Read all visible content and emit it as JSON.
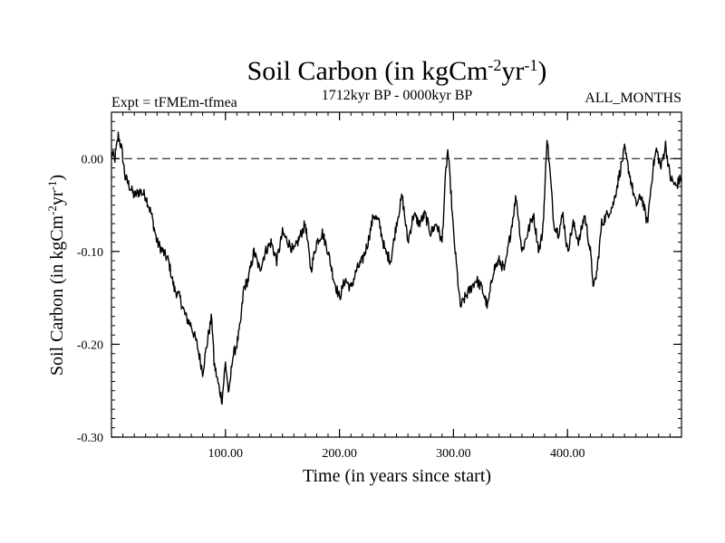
{
  "chart_data": {
    "type": "line",
    "title": {
      "main": "Soil Carbon (in kgCm",
      "sup1": "-2",
      "mid": "yr",
      "sup2": "-1",
      "end": ")"
    },
    "subtitle_left": "Expt = tFMEm-tfmea",
    "subtitle_center": "1712kyr BP - 0000kyr BP",
    "subtitle_right": "ALL_MONTHS",
    "xlabel": "Time (in years since start)",
    "ylabel": {
      "main": "Soil Carbon (in kgCm",
      "sup1": "-2",
      "mid": "yr",
      "sup2": "-1",
      "end": ")"
    },
    "xlim": [
      0,
      500
    ],
    "ylim": [
      -0.3,
      0.05
    ],
    "xticks": [
      {
        "value": 100,
        "label": "100.00"
      },
      {
        "value": 200,
        "label": "200.00"
      },
      {
        "value": 300,
        "label": "300.00"
      },
      {
        "value": 400,
        "label": "400.00"
      }
    ],
    "yticks": [
      {
        "value": 0.0,
        "label": "0.00"
      },
      {
        "value": -0.1,
        "label": "-0.10"
      },
      {
        "value": -0.2,
        "label": "-0.20"
      },
      {
        "value": -0.3,
        "label": "-0.30"
      }
    ],
    "reference_line": {
      "y": 0.0,
      "style": "dashed"
    },
    "series": [
      {
        "name": "Soil Carbon",
        "color": "#000000",
        "x": [
          0,
          3,
          6,
          9,
          12,
          16,
          20,
          25,
          30,
          35,
          40,
          45,
          50,
          55,
          60,
          65,
          70,
          75,
          80,
          85,
          88,
          90,
          94,
          97,
          100,
          103,
          106,
          110,
          113,
          116,
          120,
          125,
          130,
          135,
          140,
          145,
          150,
          155,
          160,
          165,
          170,
          175,
          180,
          185,
          190,
          195,
          200,
          205,
          210,
          215,
          220,
          225,
          230,
          235,
          240,
          245,
          250,
          255,
          260,
          265,
          270,
          275,
          280,
          285,
          290,
          293,
          295,
          298,
          300,
          303,
          306,
          310,
          315,
          320,
          325,
          330,
          335,
          340,
          345,
          350,
          355,
          360,
          365,
          370,
          375,
          378,
          380,
          382,
          385,
          388,
          392,
          396,
          400,
          405,
          410,
          415,
          420,
          423,
          426,
          430,
          435,
          440,
          445,
          450,
          455,
          460,
          465,
          470,
          475,
          478,
          482,
          486,
          490,
          495,
          500
        ],
        "values": [
          0.005,
          0.0,
          0.025,
          0.01,
          -0.02,
          -0.03,
          -0.04,
          -0.035,
          -0.04,
          -0.06,
          -0.09,
          -0.1,
          -0.11,
          -0.14,
          -0.15,
          -0.17,
          -0.18,
          -0.2,
          -0.23,
          -0.19,
          -0.17,
          -0.22,
          -0.245,
          -0.26,
          -0.22,
          -0.255,
          -0.215,
          -0.2,
          -0.18,
          -0.14,
          -0.13,
          -0.1,
          -0.12,
          -0.1,
          -0.09,
          -0.11,
          -0.08,
          -0.09,
          -0.1,
          -0.085,
          -0.07,
          -0.12,
          -0.09,
          -0.08,
          -0.1,
          -0.13,
          -0.15,
          -0.13,
          -0.14,
          -0.12,
          -0.11,
          -0.09,
          -0.06,
          -0.07,
          -0.1,
          -0.11,
          -0.07,
          -0.04,
          -0.09,
          -0.06,
          -0.07,
          -0.06,
          -0.08,
          -0.07,
          -0.09,
          -0.02,
          0.01,
          -0.04,
          -0.08,
          -0.12,
          -0.16,
          -0.15,
          -0.14,
          -0.13,
          -0.14,
          -0.16,
          -0.12,
          -0.11,
          -0.12,
          -0.08,
          -0.04,
          -0.1,
          -0.08,
          -0.06,
          -0.1,
          -0.08,
          -0.04,
          0.025,
          -0.02,
          -0.07,
          -0.08,
          -0.06,
          -0.1,
          -0.07,
          -0.09,
          -0.06,
          -0.1,
          -0.14,
          -0.12,
          -0.07,
          -0.06,
          -0.05,
          -0.02,
          0.01,
          -0.02,
          -0.05,
          -0.04,
          -0.07,
          -0.01,
          0.01,
          -0.01,
          0.015,
          -0.02,
          -0.03,
          -0.02
        ]
      }
    ]
  }
}
